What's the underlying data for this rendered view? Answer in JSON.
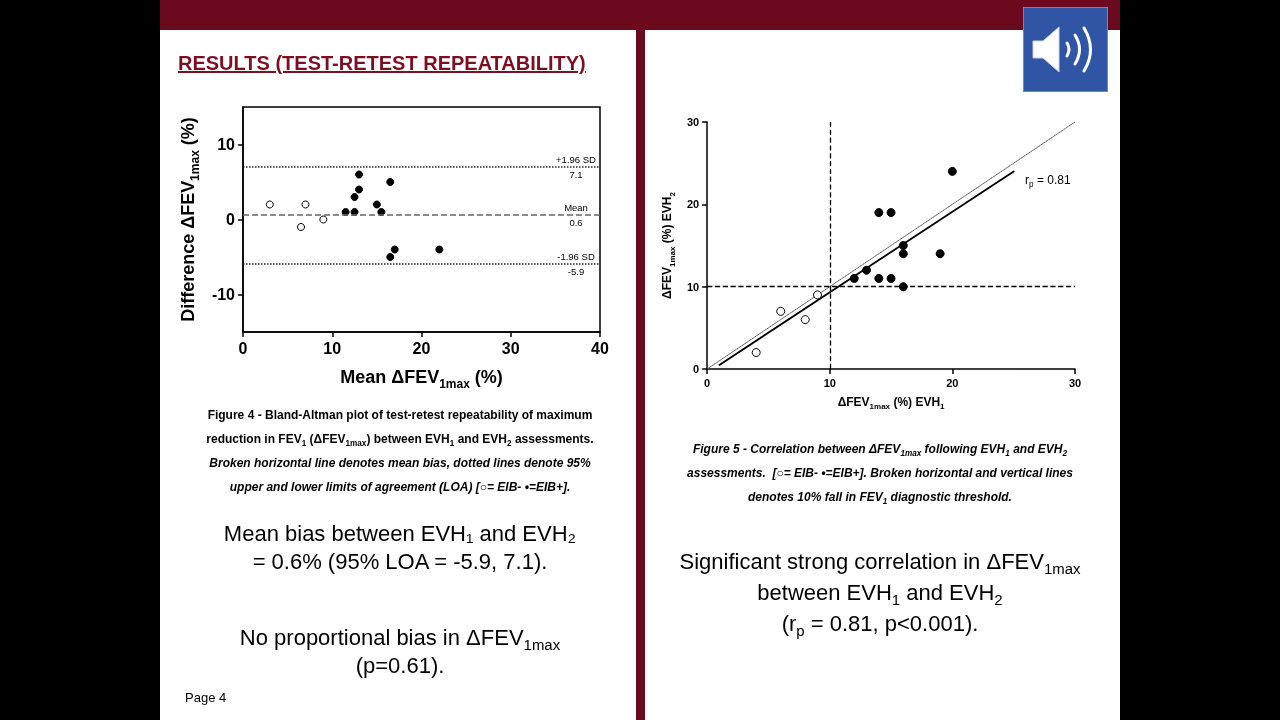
{
  "chart_data": [
    {
      "type": "scatter",
      "title": "RESULTS (TEST-RETEST REPEATABILITY)",
      "xlabel": "Mean ΔFEV$_{1max}$ (%)",
      "ylabel": "Difference ΔFEV$_{1max}$ (%)",
      "xlim": [
        0,
        40
      ],
      "xticks": [
        0,
        10,
        20,
        30,
        40
      ],
      "ylim": [
        -15,
        15
      ],
      "yticks": [
        -10,
        0,
        10
      ],
      "marker": "circle",
      "series": [
        {
          "color": "#ffffff",
          "x": [
            3,
            7,
            6.5,
            9
          ],
          "values": [
            2,
            2,
            -1,
            0
          ]
        },
        {
          "color": "#000000",
          "x": [
            11.5,
            12.5,
            12.5,
            13,
            13,
            15,
            15.5,
            16.5,
            16.5,
            17,
            22
          ],
          "values": [
            1,
            1,
            3,
            4,
            6,
            2,
            1,
            5,
            -5,
            -4,
            -4
          ]
        }
      ],
      "ref_lines": [
        {
          "axis": "y",
          "value": 7.1,
          "label": "+1.96 SD\n7.1",
          "line_style": "dotted",
          "color": "#222222"
        },
        {
          "axis": "y",
          "value": 0.6,
          "label": "Mean\n0.6",
          "line_style": "dashed",
          "color": "#666666"
        },
        {
          "axis": "y",
          "value": -5.9,
          "label": "-1.96 SD\n-5.9",
          "line_style": "dotted",
          "color": "#222222"
        }
      ],
      "annotations": [
        "Figure 4 - Bland-Altman plot of test-retest repeatability of maximum\nreduction in FEV$_{1}$ (ΔFEV$_{1max}$) between EVH$_{1}$ and EVH$_{2}$ assessments.",
        "Broken horizontal line denotes mean bias, dotted lines denote 95%\nupper and lower limits of agreement (LOA) [○= EIB- •=EIB+].",
        "Mean bias between EVH₁ and EVH₂\n= 0.6% (95% LOA = -5.9, 7.1).",
        "No proportional bias in ΔFEV$_{1max}$\n(p=0.61).",
        "Page 4"
      ]
    },
    {
      "type": "scatter",
      "xlabel": "ΔFEV$_{1max}$ (%) EVH$_{1}$",
      "ylabel": "ΔFEV$_{1max}$ (%) EVH$_{2}$",
      "xlim": [
        0,
        30
      ],
      "xticks": [
        0,
        10,
        20,
        30
      ],
      "ylim": [
        0,
        30
      ],
      "yticks": [
        0,
        10,
        20,
        30
      ],
      "marker": "circle",
      "series": [
        {
          "type": "line",
          "x": [
            0,
            30
          ],
          "values": [
            0,
            30
          ],
          "color": "#555555",
          "marker": "none",
          "line_style": "dotted"
        },
        {
          "type": "line",
          "x": [
            1,
            25
          ],
          "values": [
            0.5,
            24
          ],
          "color": "#000000",
          "marker": "none",
          "line_style": "solid"
        },
        {
          "color": "#ffffff",
          "x": [
            4,
            6,
            8,
            9
          ],
          "values": [
            2,
            7,
            6,
            9
          ]
        },
        {
          "color": "#000000",
          "x": [
            12,
            13,
            14,
            15,
            14,
            15,
            16,
            16,
            16,
            19,
            20
          ],
          "values": [
            11,
            12,
            11,
            11,
            19,
            19,
            15,
            14,
            10,
            14,
            24
          ]
        }
      ],
      "ref_lines": [
        {
          "axis": "x",
          "value": 10,
          "line_style": "dashed",
          "color": "#000000"
        },
        {
          "axis": "y",
          "value": 10,
          "line_style": "dashed",
          "color": "#000000"
        }
      ],
      "annotations": [
        "r$_{p}$ = 0.81",
        "Figure 5 - Correlation between ΔFEV$_{1max}$ following EVH$_{1}$ and EVH$_{2}$\nassessments.  [○= EIB- •=EIB+]. Broken horizontal and vertical lines\ndenotes 10% fall in FEV$_{1}$ diagnostic threshold.",
        "Significant strong correlation in ΔFEV$_{1max}$\nbetween EVH$_{1}$ and EVH$_{2}$\n(r$_{p}$ = 0.81, p<0.001)."
      ]
    }
  ]
}
